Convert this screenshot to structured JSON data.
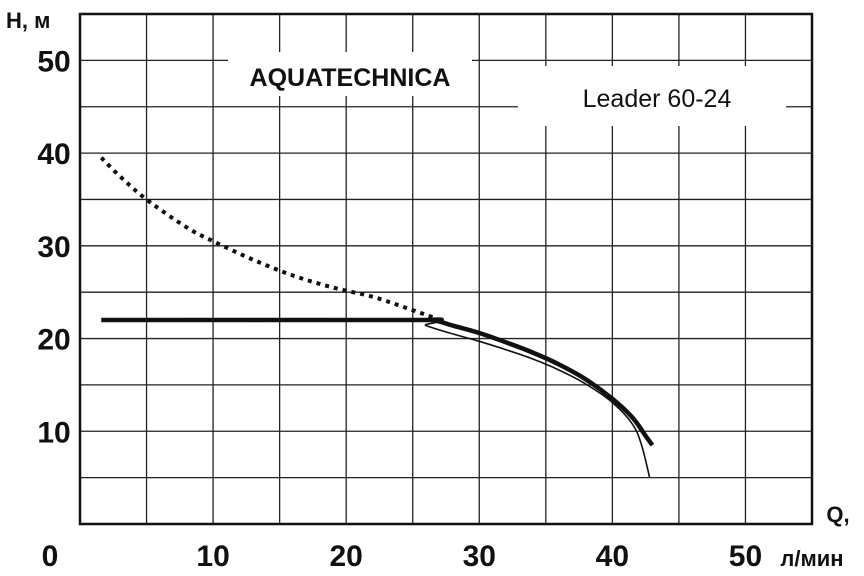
{
  "chart_data": {
    "type": "line",
    "brand": "AQUATECHNICA",
    "model": "Leader 60-24",
    "ylabel": "H, м",
    "xlabel_line1": "Q,",
    "xlabel_line2": "л/мин",
    "xlim": [
      0,
      55
    ],
    "ylim": [
      0,
      55
    ],
    "x_grid_step": 5,
    "y_grid_step": 5,
    "grid": true,
    "x_ticks": [
      0,
      10,
      20,
      30,
      40,
      50
    ],
    "y_ticks": [
      10,
      20,
      30,
      40,
      50
    ],
    "series": [
      {
        "style": "dotted",
        "points": [
          [
            1.6,
            39.5
          ],
          [
            3,
            37.5
          ],
          [
            5,
            35
          ],
          [
            8,
            32
          ],
          [
            10,
            30.5
          ],
          [
            13,
            28.5
          ],
          [
            16,
            26.8
          ],
          [
            19,
            25.5
          ],
          [
            22,
            24.5
          ],
          [
            24.5,
            23.3
          ],
          [
            26.5,
            22.3
          ]
        ]
      },
      {
        "style": "thick",
        "points": [
          [
            1.6,
            22
          ],
          [
            25,
            22
          ],
          [
            26.5,
            22
          ],
          [
            28,
            21.4
          ],
          [
            30,
            20.6
          ],
          [
            32,
            19.6
          ],
          [
            34,
            18.5
          ],
          [
            36,
            17.2
          ],
          [
            38,
            15.6
          ],
          [
            40,
            13.5
          ],
          [
            41.5,
            11.5
          ],
          [
            42.5,
            9.5
          ],
          [
            43,
            8.5
          ]
        ]
      },
      {
        "style": "thin",
        "points": [
          [
            1.6,
            22
          ],
          [
            25,
            22
          ],
          [
            26,
            21.4
          ],
          [
            28,
            20.5
          ],
          [
            30,
            19.7
          ],
          [
            32,
            18.8
          ],
          [
            34,
            17.8
          ],
          [
            36,
            16.6
          ],
          [
            38,
            15.1
          ],
          [
            40,
            13.1
          ],
          [
            41.5,
            10.8
          ],
          [
            42.2,
            8.5
          ],
          [
            42.8,
            5
          ]
        ]
      }
    ]
  }
}
